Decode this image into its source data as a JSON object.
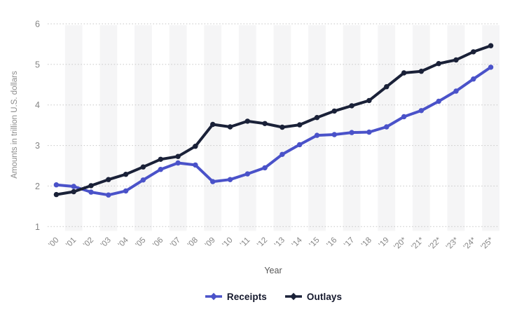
{
  "chart_data": {
    "type": "line",
    "title": "",
    "xlabel": "Year",
    "ylabel": "Amounts in trillion U.S. dollars",
    "ylim": [
      1,
      6
    ],
    "yticks": [
      1,
      2,
      3,
      4,
      5,
      6
    ],
    "grid": "horizontal-dotted",
    "background_bands": "alternating vertical column stripes",
    "legend_position": "bottom",
    "categories": [
      "'00",
      "'01",
      "'02",
      "'03",
      "'04",
      "'05",
      "'06",
      "'07",
      "'08",
      "'09",
      "'10",
      "'11",
      "'12",
      "'13",
      "'14",
      "'15",
      "'16",
      "'17",
      "'18",
      "'19",
      "'20*",
      "'21*",
      "'22*",
      "'23*",
      "'24*",
      "'25*"
    ],
    "series": [
      {
        "name": "Receipts",
        "color": "#4a52c9",
        "values": [
          2.03,
          1.99,
          1.85,
          1.78,
          1.88,
          2.15,
          2.41,
          2.57,
          2.52,
          2.11,
          2.16,
          2.3,
          2.45,
          2.78,
          3.02,
          3.25,
          3.27,
          3.32,
          3.33,
          3.46,
          3.71,
          3.86,
          4.09,
          4.34,
          4.64,
          4.93
        ]
      },
      {
        "name": "Outlays",
        "color": "#1a2138",
        "values": [
          1.79,
          1.86,
          2.01,
          2.16,
          2.29,
          2.47,
          2.66,
          2.73,
          2.98,
          3.52,
          3.46,
          3.6,
          3.54,
          3.45,
          3.51,
          3.69,
          3.85,
          3.98,
          4.11,
          4.45,
          4.79,
          4.83,
          5.02,
          5.11,
          5.31,
          5.46
        ]
      }
    ],
    "style": {
      "band_color": "#f5f5f6",
      "gridline_color": "#c6c6c6",
      "tick_label_color": "#858585",
      "y_axis_title_color": "#8c8c8c",
      "x_axis_title_color": "#555555",
      "legend_text_color": "#15192d"
    }
  }
}
